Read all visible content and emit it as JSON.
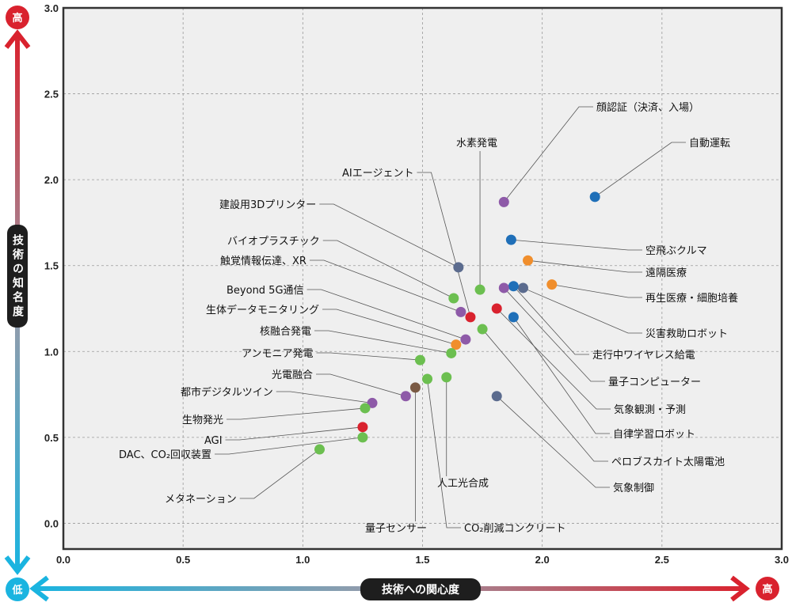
{
  "chart_data": {
    "type": "scatter",
    "xlabel": "技術への関心度",
    "ylabel": "技術の知名度",
    "x_low": "低",
    "x_high": "高",
    "y_low": "低",
    "y_high": "高",
    "xlim": [
      0,
      3
    ],
    "ylim": [
      -0.15,
      3
    ],
    "x_ticks": [
      "0.0",
      "0.5",
      "1.0",
      "1.5",
      "2.0",
      "2.5",
      "3.0"
    ],
    "y_ticks": [
      "0.0",
      "0.5",
      "1.0",
      "1.5",
      "2.0",
      "2.5",
      "3.0"
    ],
    "grid": true,
    "colors": {
      "red": "#d9222e",
      "blue": "#1f6fb8",
      "green": "#6cbf50",
      "purple": "#8e5aa8",
      "orange": "#f08e2c",
      "slate": "#5b6b8e",
      "brown": "#7a5a44",
      "axis_high": "#d9222e",
      "axis_low": "#1ab4e0"
    },
    "points": [
      {
        "label": "顔認証（決済、入場）",
        "x": 1.84,
        "y": 1.87,
        "color": "purple"
      },
      {
        "label": "自動運転",
        "x": 2.22,
        "y": 1.9,
        "color": "blue"
      },
      {
        "label": "水素発電",
        "x": 1.74,
        "y": 1.36,
        "color": "green"
      },
      {
        "label": "AIエージェント",
        "x": 1.7,
        "y": 1.2,
        "color": "red"
      },
      {
        "label": "建設用3Dプリンター",
        "x": 1.65,
        "y": 1.49,
        "color": "slate"
      },
      {
        "label": "空飛ぶクルマ",
        "x": 1.87,
        "y": 1.65,
        "color": "blue"
      },
      {
        "label": "遠隔医療",
        "x": 1.94,
        "y": 1.53,
        "color": "orange"
      },
      {
        "label": "バイオプラスチック",
        "x": 1.63,
        "y": 1.31,
        "color": "green"
      },
      {
        "label": "触覚情報伝達、XR",
        "x": 1.66,
        "y": 1.23,
        "color": "purple"
      },
      {
        "label": "再生医療・細胞培養",
        "x": 2.04,
        "y": 1.39,
        "color": "orange"
      },
      {
        "label": "Beyond 5G通信",
        "x": 1.68,
        "y": 1.07,
        "color": "purple"
      },
      {
        "label": "生体データモニタリング",
        "x": 1.64,
        "y": 1.04,
        "color": "orange"
      },
      {
        "label": "災害救助ロボット",
        "x": 1.92,
        "y": 1.37,
        "color": "slate"
      },
      {
        "label": "核融合発電",
        "x": 1.62,
        "y": 0.99,
        "color": "green"
      },
      {
        "label": "走行中ワイヤレス給電",
        "x": 1.88,
        "y": 1.38,
        "color": "blue"
      },
      {
        "label": "アンモニア発電",
        "x": 1.49,
        "y": 0.95,
        "color": "green"
      },
      {
        "label": "量子コンピューター",
        "x": 1.84,
        "y": 1.37,
        "color": "purple"
      },
      {
        "label": "光電融合",
        "x": 1.43,
        "y": 0.74,
        "color": "purple"
      },
      {
        "label": "気象観測・予測",
        "x": 1.81,
        "y": 1.25,
        "color": "red"
      },
      {
        "label": "都市デジタルツイン",
        "x": 1.29,
        "y": 0.7,
        "color": "purple"
      },
      {
        "label": "自律学習ロボット",
        "x": 1.88,
        "y": 1.2,
        "color": "blue"
      },
      {
        "label": "生物発光",
        "x": 1.26,
        "y": 0.67,
        "color": "green"
      },
      {
        "label": "ペロブスカイト太陽電池",
        "x": 1.75,
        "y": 1.13,
        "color": "green"
      },
      {
        "label": "AGI",
        "x": 1.25,
        "y": 0.56,
        "color": "red"
      },
      {
        "label": "DAC、CO₂回収装置",
        "x": 1.25,
        "y": 0.5,
        "color": "green"
      },
      {
        "label": "気象制御",
        "x": 1.81,
        "y": 0.74,
        "color": "slate"
      },
      {
        "label": "人工光合成",
        "x": 1.6,
        "y": 0.85,
        "color": "green"
      },
      {
        "label": "メタネーション",
        "x": 1.07,
        "y": 0.43,
        "color": "green"
      },
      {
        "label": "量子センサー",
        "x": 1.47,
        "y": 0.79,
        "color": "brown"
      },
      {
        "label": "CO₂削減コンクリート",
        "x": 1.52,
        "y": 0.84,
        "color": "green"
      }
    ]
  }
}
